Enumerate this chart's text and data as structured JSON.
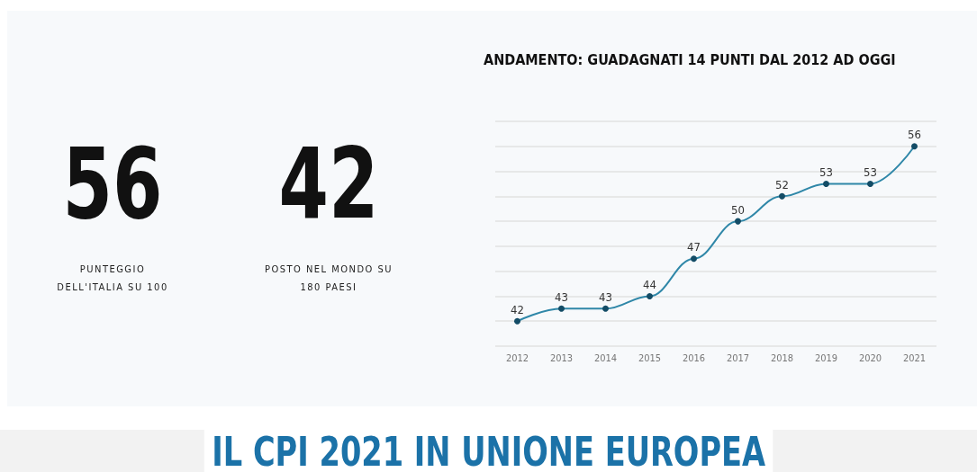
{
  "chart_data": [
    {
      "type": "other",
      "annotations": [
        "56",
        "PUNTEGGIO\nDELL'ITALIA SU 100",
        "42",
        "POSTO NEL MONDO SU\n180 PAESI"
      ]
    },
    {
      "type": "line",
      "title": "ANDAMENTO: GUADAGNATI 14 PUNTI DAL 2012 AD OGGI",
      "categories": [
        "2012",
        "2013",
        "2014",
        "2015",
        "2016",
        "2017",
        "2018",
        "2019",
        "2020",
        "2021"
      ],
      "series": [
        {
          "color": "#2f87a8",
          "values": [
            42,
            43,
            43,
            44,
            47,
            50,
            52,
            53,
            53,
            56
          ]
        }
      ],
      "ylim": [
        40,
        58
      ],
      "yticks": [
        {
          "value": 40,
          "label": null
        },
        {
          "value": 42,
          "label": null
        },
        {
          "value": 44,
          "label": null
        },
        {
          "value": 46,
          "label": null
        },
        {
          "value": 48,
          "label": null
        },
        {
          "value": 50,
          "label": null
        },
        {
          "value": 52,
          "label": null
        },
        {
          "value": 54,
          "label": null
        },
        {
          "value": 56,
          "label": null
        },
        {
          "value": 58,
          "label": null
        }
      ],
      "tick_labels": "x",
      "grid": "y",
      "marker": "circle",
      "line_style": "solid",
      "data_labels": true
    },
    {
      "type": "other",
      "title": "IL CPI 2021 IN UNIONE EUROPEA"
    }
  ]
}
